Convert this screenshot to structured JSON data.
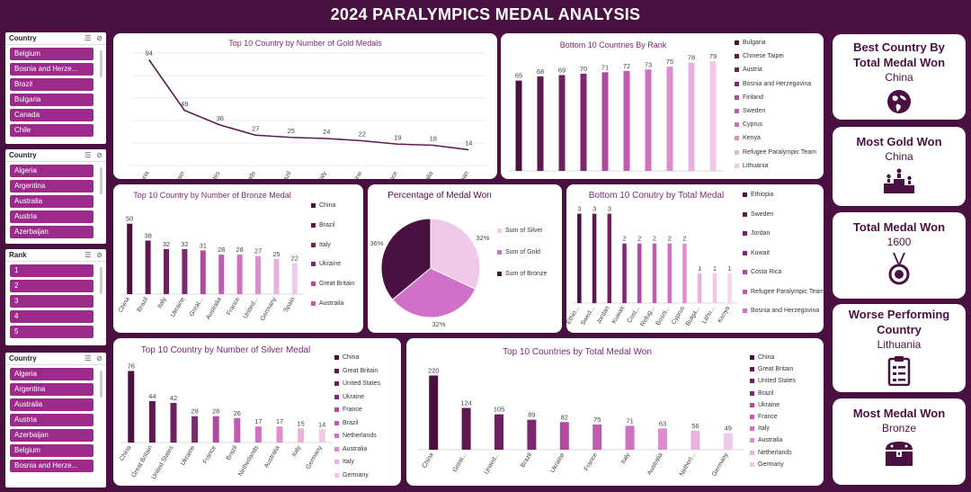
{
  "header": {
    "title": "2024 PARALYMPICS MEDAL ANALYSIS"
  },
  "slicers": [
    {
      "title": "Country",
      "items": [
        "Belgium",
        "Bosnia and Herze...",
        "Brazil",
        "Bulgaria",
        "Canada",
        "Chile"
      ]
    },
    {
      "title": "Country",
      "items": [
        "Algeria",
        "Argentina",
        "Australia",
        "Austria",
        "Azerbaijan"
      ]
    },
    {
      "title": "Rank",
      "items": [
        "1",
        "2",
        "3",
        "4",
        "5"
      ]
    },
    {
      "title": "Country",
      "items": [
        "Algeria",
        "Argentina",
        "Australia",
        "Austria",
        "Azerbaijan",
        "Belgium",
        "Bosnia and Herze..."
      ]
    }
  ],
  "kpis": [
    {
      "title": "Best Country By Total Medal Won",
      "value": "China",
      "icon": "globe-icon"
    },
    {
      "title": "Most Gold Won",
      "value": "China",
      "icon": "podium-icon"
    },
    {
      "title": "Total Medal Won",
      "value": "1600",
      "icon": "medal-icon"
    },
    {
      "title": "Worse Performing Country",
      "value": "Lithuania",
      "icon": "clipboard-icon"
    },
    {
      "title": "Most Medal Won",
      "value": "Bronze",
      "icon": "treasure-chest-icon"
    }
  ],
  "chart_data": [
    {
      "id": "gold",
      "type": "line",
      "title": "Top 10 Country by Number of Gold Medals",
      "categories": [
        "China",
        "Great Britain",
        "United States",
        "Netherlands",
        "Brazil",
        "Italy",
        "Ukraine",
        "France",
        "Australia",
        "Japan"
      ],
      "values": [
        94,
        49,
        36,
        27,
        25,
        24,
        22,
        19,
        18,
        14
      ],
      "ylim": [
        0,
        100
      ],
      "grid": true,
      "color": "#5c1a50"
    },
    {
      "id": "rank",
      "type": "bar",
      "title": "Bottom 10 Countries By Rank",
      "categories": [
        "Bulgaria",
        "Chinese Taipei",
        "Austria",
        "Bosnia and Herzegovina",
        "Finland",
        "Sweden",
        "Cyprus",
        "Kenya",
        "Refugee Paralympic Team",
        "Lithuania"
      ],
      "values": [
        65,
        68,
        69,
        70,
        71,
        72,
        73,
        75,
        78,
        79
      ],
      "colors": [
        "#4a1042",
        "#5c1a50",
        "#6e2060",
        "#7e2870",
        "#b04aa0",
        "#c05cb0",
        "#d070c0",
        "#dc8ecf",
        "#e8b0df",
        "#f0c8ea"
      ],
      "ylim": [
        0,
        90
      ],
      "legend": "right"
    },
    {
      "id": "bronze",
      "type": "bar",
      "title": "Top 10 Country by Number of Bronze Medal",
      "categories": [
        "China",
        "Brazil",
        "Italy",
        "Ukraine",
        "Great...",
        "Australia",
        "France",
        "United...",
        "Germany",
        "Spain"
      ],
      "values": [
        50,
        38,
        32,
        32,
        31,
        28,
        28,
        27,
        25,
        22
      ],
      "legend_items": [
        "China",
        "Brazil",
        "Italy",
        "Ukraine",
        "Great Britain",
        "Australia"
      ],
      "colors": [
        "#4a1042",
        "#5c1a50",
        "#6e2060",
        "#7e2870",
        "#b04aa0",
        "#c05cb0",
        "#d070c0",
        "#dc8ecf",
        "#e8b0df",
        "#f0c8ea"
      ],
      "ylim": [
        0,
        60
      ],
      "legend": "right"
    },
    {
      "id": "pie",
      "type": "pie",
      "title": "Percentage of Medal Won",
      "series": [
        {
          "name": "Sum of Silver",
          "value": 32,
          "label": "32%",
          "color": "#f0c8ea"
        },
        {
          "name": "Sum of Gold",
          "value": 32,
          "label": "32%",
          "color": "#d070c8"
        },
        {
          "name": "Sum of Bronze",
          "value": 36,
          "label": "36%",
          "color": "#4a1042"
        }
      ],
      "legend": "right"
    },
    {
      "id": "total_bottom",
      "type": "bar",
      "title": "Bottom 10 Conutry by Total Medal",
      "categories": [
        "Ethio...",
        "Swed...",
        "Jordan",
        "Kuwait",
        "Cost...",
        "Refug...",
        "Bosni...",
        "Cyprus",
        "Bulga...",
        "Lithu...",
        "Kenya"
      ],
      "values": [
        3,
        3,
        3,
        2,
        2,
        2,
        2,
        2,
        1,
        1,
        1
      ],
      "legend_items": [
        "Ethiopia",
        "Sweden",
        "Jordan",
        "Kuwait",
        "Costa Rica",
        "Refugee Paralympic Team",
        "Bosnia and Herzegovina"
      ],
      "colors": [
        "#4a1042",
        "#5c1a50",
        "#6e2060",
        "#7e2870",
        "#b04aa0",
        "#c05cb0",
        "#d070c0",
        "#dc8ecf",
        "#e8b0df",
        "#f0c8ea",
        "#f4d4ee"
      ],
      "ylim": [
        0,
        3.5
      ],
      "legend": "right"
    },
    {
      "id": "silver",
      "type": "bar",
      "title": "Top 10 Country by Number of Silver Medal",
      "categories": [
        "China",
        "Great Britain",
        "United States",
        "Ukraine",
        "France",
        "Brazil",
        "Netherlands",
        "Australia",
        "Italy",
        "Germany"
      ],
      "values": [
        76,
        44,
        42,
        28,
        28,
        26,
        17,
        17,
        15,
        14
      ],
      "legend_items": [
        "China",
        "Great Britain",
        "United States",
        "Ukraine",
        "France",
        "Brazil",
        "Netherlands",
        "Australia",
        "Italy",
        "Germany"
      ],
      "colors": [
        "#4a1042",
        "#5c1a50",
        "#6e2060",
        "#7e2870",
        "#b04aa0",
        "#c05cb0",
        "#d070c0",
        "#dc8ecf",
        "#e8b0df",
        "#f0c8ea"
      ],
      "ylim": [
        0,
        85
      ],
      "legend": "right"
    },
    {
      "id": "total_top",
      "type": "bar",
      "title": "Top 10 Countries by Total Medal Won",
      "categories": [
        "China",
        "Great...",
        "United...",
        "Brazil",
        "Ukraine",
        "France",
        "Italy",
        "Australia",
        "Netherl...",
        "Germany"
      ],
      "values": [
        220,
        124,
        105,
        89,
        82,
        75,
        71,
        63,
        56,
        49
      ],
      "legend_items": [
        "China",
        "Great Britain",
        "United States",
        "Brazil",
        "Ukraine",
        "France",
        "Italy",
        "Australia",
        "Netherlands",
        "Germany"
      ],
      "colors": [
        "#4a1042",
        "#5c1a50",
        "#6e2060",
        "#7e2870",
        "#b04aa0",
        "#c05cb0",
        "#d070c0",
        "#dc8ecf",
        "#e8b0df",
        "#f0c8ea"
      ],
      "ylim": [
        0,
        240
      ],
      "legend": "right"
    }
  ]
}
